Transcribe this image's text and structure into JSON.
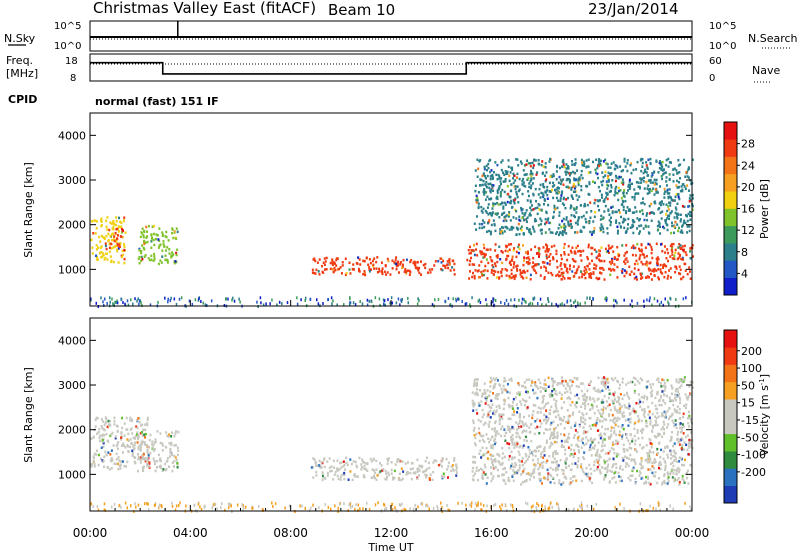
{
  "header": {
    "title": "Christmas Valley East (fitACF)",
    "beam": "Beam 10",
    "date": "23/Jan/2014"
  },
  "noise_panel": {
    "left_label": "N.Sky",
    "left_ticks": [
      "10^5",
      "10^0"
    ],
    "right_ticks": [
      "10^5",
      "10^0"
    ],
    "right_label": "N.Search"
  },
  "freq_panel": {
    "left_label_1": "Freq.",
    "left_label_2": "[MHz]",
    "left_ticks": [
      "18",
      "8"
    ],
    "right_ticks": [
      "60",
      "0"
    ],
    "right_label": "Nave",
    "segments": [
      {
        "start_h": 0.0,
        "end_h": 2.9,
        "freq_mhz": 14.8
      },
      {
        "start_h": 2.9,
        "end_h": 15.0,
        "freq_mhz": 10.6
      },
      {
        "start_h": 15.0,
        "end_h": 24.0,
        "freq_mhz": 14.8
      }
    ]
  },
  "cpid": {
    "label": "CPID",
    "program": "normal (fast) 151 IF"
  },
  "chart_data": [
    {
      "type": "heatmap",
      "title": "",
      "parameter": "Power",
      "ylabel": "Slant Range [km]",
      "xlabel": "",
      "ylim": [
        180,
        4500
      ],
      "xlim_hours": [
        0,
        24
      ],
      "y_ticks": [
        "1000",
        "2000",
        "3000",
        "4000"
      ],
      "colorbar": {
        "label": "Power [dB]",
        "ticks": [
          "4",
          "8",
          "12",
          "16",
          "20",
          "24",
          "28"
        ],
        "colors": [
          "#0f1ec8",
          "#2357c6",
          "#2a7f8a",
          "#3c9a5a",
          "#7fc22a",
          "#f0d010",
          "#f5a020",
          "#f37417",
          "#f03a12",
          "#e61010"
        ]
      },
      "regions": [
        {
          "start_h": 0.0,
          "end_h": 1.4,
          "range_km": [
            1150,
            2200
          ],
          "value_db": 17
        },
        {
          "start_h": 0.7,
          "end_h": 1.3,
          "range_km": [
            1500,
            1950
          ],
          "value_db": 27
        },
        {
          "start_h": 1.9,
          "end_h": 3.5,
          "range_km": [
            1150,
            2000
          ],
          "value_db": 13
        },
        {
          "start_h": 8.8,
          "end_h": 14.6,
          "range_km": [
            900,
            1300
          ],
          "value_db": 28
        },
        {
          "start_h": 15.0,
          "end_h": 24.0,
          "range_km": [
            800,
            1600
          ],
          "value_db": 28
        },
        {
          "start_h": 15.3,
          "end_h": 24.0,
          "range_km": [
            1800,
            3500
          ],
          "value_db": 8
        }
      ]
    },
    {
      "type": "heatmap",
      "title": "",
      "parameter": "Velocity",
      "ylabel": "Slant Range [km]",
      "xlabel": "Time UT",
      "ylim": [
        180,
        4500
      ],
      "xlim_hours": [
        0,
        24
      ],
      "y_ticks": [
        "1000",
        "2000",
        "3000",
        "4000"
      ],
      "x_ticks": [
        "00:00",
        "04:00",
        "08:00",
        "12:00",
        "16:00",
        "20:00",
        "00:00"
      ],
      "colorbar": {
        "label": "Velocity [m s",
        "label_exp": "-1",
        "label_close": "]",
        "ticks": [
          "200",
          "100",
          "50",
          "15",
          "-15",
          "-50",
          "-100",
          "-200"
        ],
        "colors": [
          "#1e3cb4",
          "#2a72c0",
          "#2f8b3d",
          "#5fc02a",
          "#c8c8c0",
          "#c8c8c0",
          "#f5a020",
          "#f37417",
          "#f03a12",
          "#e61010"
        ]
      },
      "regions": [
        {
          "start_h": 0.0,
          "end_h": 2.3,
          "range_km": [
            1100,
            2300
          ],
          "value_ms": 0
        },
        {
          "start_h": 1.9,
          "end_h": 3.5,
          "range_km": [
            1100,
            2000
          ],
          "value_ms": 40
        },
        {
          "start_h": 8.8,
          "end_h": 14.6,
          "range_km": [
            900,
            1400
          ],
          "value_ms": 30
        },
        {
          "start_h": 15.2,
          "end_h": 24.0,
          "range_km": [
            800,
            3200
          ],
          "value_ms": 0
        }
      ]
    }
  ]
}
